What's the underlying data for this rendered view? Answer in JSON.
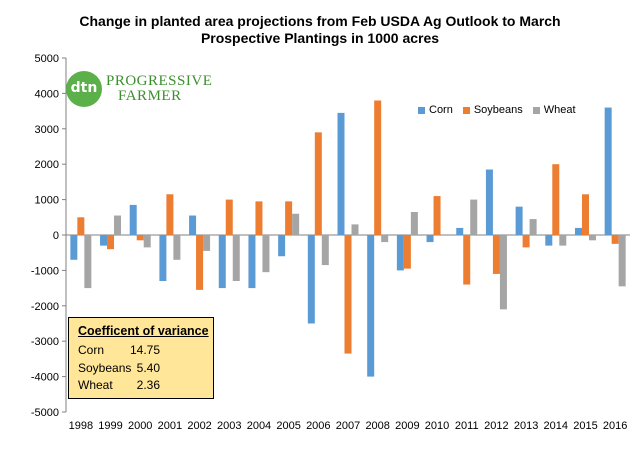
{
  "chart_data": {
    "type": "bar",
    "title_line1": "Change in planted area projections from Feb USDA Ag Outlook to March",
    "title_line2": "Prospective Plantings in 1000 acres",
    "categories": [
      "1998",
      "1999",
      "2000",
      "2001",
      "2002",
      "2003",
      "2004",
      "2005",
      "2006",
      "2007",
      "2008",
      "2009",
      "2010",
      "2011",
      "2012",
      "2013",
      "2014",
      "2015",
      "2016"
    ],
    "series": [
      {
        "name": "Corn",
        "color": "#5b9bd5",
        "values": [
          -700,
          -300,
          850,
          -1300,
          550,
          -1500,
          -1500,
          -600,
          -2500,
          3450,
          -4000,
          -1000,
          -200,
          200,
          1850,
          800,
          -300,
          200,
          3600
        ]
      },
      {
        "name": "Soybeans",
        "color": "#ed7d31",
        "values": [
          500,
          -400,
          -150,
          1150,
          -1550,
          1000,
          950,
          950,
          2900,
          -3350,
          3800,
          -950,
          1100,
          -1400,
          -1100,
          -350,
          2000,
          1150,
          -250
        ]
      },
      {
        "name": "Wheat",
        "color": "#a5a5a5",
        "values": [
          -1500,
          550,
          -350,
          -700,
          -450,
          -1300,
          -1050,
          600,
          -850,
          300,
          -200,
          650,
          0,
          1000,
          -2100,
          450,
          -300,
          -150,
          -1450
        ]
      }
    ],
    "ylim": [
      -5000,
      5000
    ],
    "yticks": [
      -5000,
      -4000,
      -3000,
      -2000,
      -1000,
      0,
      1000,
      2000,
      3000,
      4000,
      5000
    ],
    "grid": false,
    "legend_position": "top-right"
  },
  "coefficient_box": {
    "title": "Coefficent of variance",
    "rows": [
      {
        "label": "Corn",
        "value": "14.75"
      },
      {
        "label": "Soybeans",
        "value": "5.40"
      },
      {
        "label": "Wheat",
        "value": "2.36"
      }
    ]
  },
  "logo": {
    "mark": "dtn",
    "line1": "PROGRESSIVE",
    "line2": "FARMER"
  }
}
